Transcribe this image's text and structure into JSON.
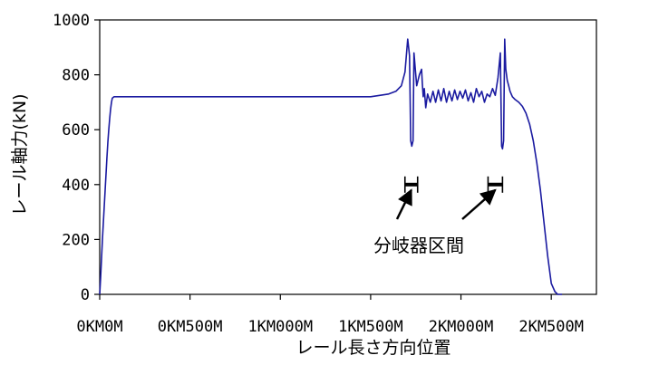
{
  "chart_data": {
    "type": "line",
    "title": "",
    "xlabel": "レール長さ方向位置",
    "ylabel": "レール軸力(kN)",
    "xlim": [
      0,
      2750
    ],
    "ylim": [
      0,
      1000
    ],
    "grid": false,
    "legend": "none",
    "x_ticks": [
      {
        "value": 0,
        "label": "0KM0M"
      },
      {
        "value": 500,
        "label": "0KM500M"
      },
      {
        "value": 1000,
        "label": "1KM000M"
      },
      {
        "value": 1500,
        "label": "1KM500M"
      },
      {
        "value": 2000,
        "label": "2KM000M"
      },
      {
        "value": 2500,
        "label": "2KM500M"
      }
    ],
    "y_ticks": [
      0,
      200,
      400,
      600,
      800,
      1000
    ],
    "line_color": "#1a1aa0",
    "series": [
      {
        "x": [
          0,
          5,
          10,
          15,
          20,
          25,
          30,
          35,
          40,
          45,
          50,
          55,
          60,
          65,
          70,
          80,
          90,
          100,
          110,
          120,
          130,
          150,
          200,
          400,
          600,
          800,
          1000,
          1200,
          1400,
          1500,
          1550,
          1600,
          1640,
          1670,
          1690,
          1705,
          1715,
          1722,
          1728,
          1735,
          1740,
          1755,
          1770,
          1782,
          1786,
          1791,
          1797,
          1805,
          1815,
          1830,
          1845,
          1860,
          1875,
          1890,
          1905,
          1920,
          1935,
          1950,
          1965,
          1980,
          1995,
          2010,
          2025,
          2040,
          2055,
          2070,
          2085,
          2100,
          2115,
          2130,
          2145,
          2160,
          2175,
          2190,
          2205,
          2218,
          2225,
          2230,
          2236,
          2242,
          2248,
          2256,
          2264,
          2272,
          2285,
          2300,
          2320,
          2340,
          2360,
          2380,
          2400,
          2420,
          2440,
          2460,
          2480,
          2500,
          2520,
          2535,
          2550,
          2560
        ],
        "values": [
          0,
          60,
          130,
          200,
          260,
          320,
          380,
          440,
          500,
          555,
          600,
          640,
          675,
          700,
          715,
          720,
          720,
          720,
          720,
          720,
          720,
          720,
          720,
          720,
          720,
          720,
          720,
          720,
          720,
          720,
          725,
          730,
          740,
          760,
          810,
          930,
          870,
          560,
          540,
          560,
          880,
          760,
          800,
          820,
          770,
          720,
          750,
          680,
          730,
          700,
          740,
          700,
          745,
          705,
          750,
          700,
          740,
          705,
          745,
          710,
          740,
          715,
          745,
          705,
          735,
          700,
          750,
          720,
          740,
          700,
          730,
          720,
          750,
          725,
          790,
          880,
          540,
          530,
          560,
          930,
          820,
          780,
          760,
          740,
          720,
          710,
          700,
          685,
          660,
          620,
          560,
          480,
          380,
          260,
          140,
          40,
          10,
          0,
          0,
          0
        ]
      }
    ],
    "annotation": {
      "label": "分岐器区間",
      "level": 400,
      "sections": [
        {
          "from": 1690,
          "to": 1760
        },
        {
          "from": 2150,
          "to": 2230
        }
      ]
    }
  }
}
